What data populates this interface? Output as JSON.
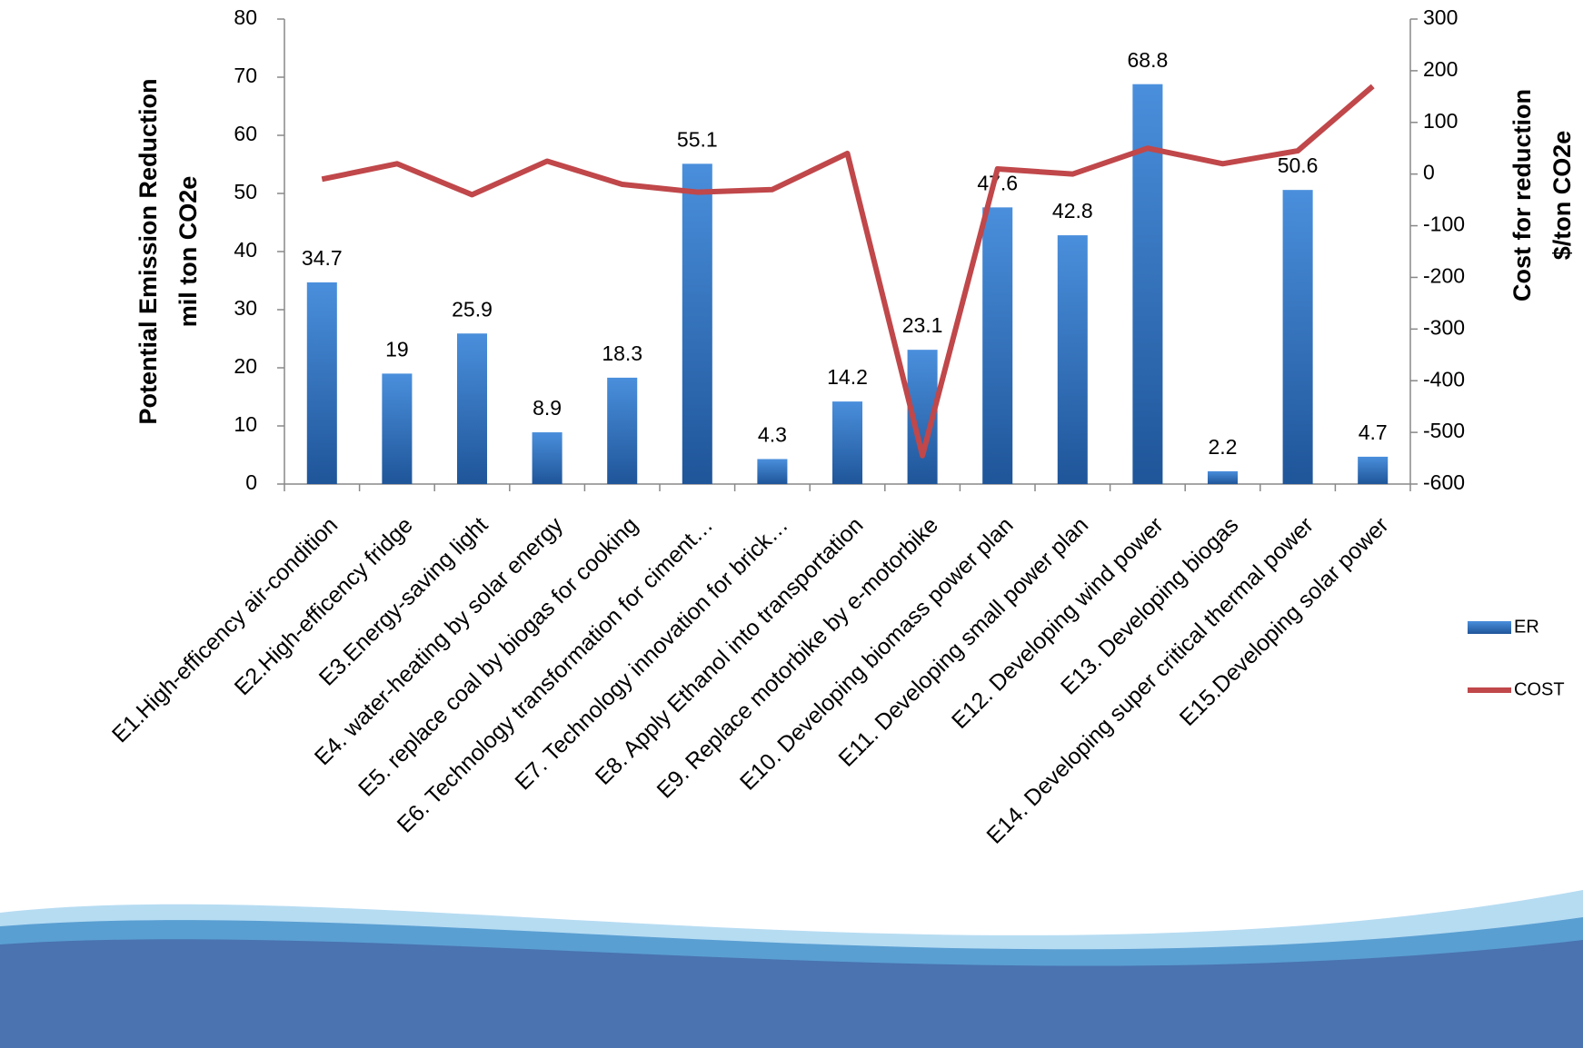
{
  "chart_data": {
    "type": "bar",
    "ylabel": [
      "Potential Emission Reduction",
      "mil ton CO2e"
    ],
    "y2label": [
      "Cost for reduction",
      "$/ton CO2e"
    ],
    "categories": [
      "E1.High-efficency air-condition",
      "E2.High-efficency fridge",
      "E3.Energy-saving light",
      "E4. water-heating by solar energy",
      "E5. replace coal by biogas for cooking",
      "E6. Technology transformation for ciment…",
      "E7. Technology innovation for brick…",
      "E8. Apply Ethanol into transportation",
      "E9. Replace motorbike by e-motorbike",
      "E10. Developing biomass power plan",
      "E11. Developing small power plan",
      "E12. Developing wind power",
      "E13. Developing biogas",
      "E14. Developing super critical thermal power",
      "E15.Developing solar power"
    ],
    "series": [
      {
        "name": "ER",
        "type": "bar",
        "color": "#2e6db5",
        "values": [
          34.7,
          19,
          25.9,
          8.9,
          18.3,
          55.1,
          4.3,
          14.2,
          23.1,
          47.6,
          42.8,
          68.8,
          2.2,
          50.6,
          4.7
        ]
      },
      {
        "name": "COST",
        "type": "line",
        "axis": "y2",
        "color": "#c0474a",
        "values": [
          -10,
          20,
          -40,
          25,
          -20,
          -35,
          -30,
          40,
          -545,
          10,
          0,
          50,
          20,
          45,
          170
        ]
      }
    ],
    "ylim": [
      0,
      80
    ],
    "yticks": [
      0,
      10,
      20,
      30,
      40,
      50,
      60,
      70,
      80
    ],
    "y2lim": [
      -600,
      300
    ],
    "y2ticks": [
      -600,
      -500,
      -400,
      -300,
      -200,
      -100,
      0,
      100,
      200,
      300
    ],
    "legend": "right"
  }
}
